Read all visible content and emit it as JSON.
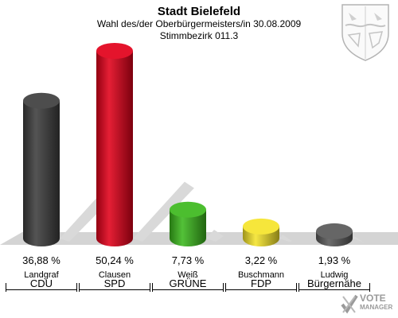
{
  "header": {
    "title": "Stadt Bielefeld",
    "subtitle": "Wahl des/der Oberbürgermeisters/in 30.08.2009",
    "district": "Stimmbezirk 011.3"
  },
  "logo": {
    "line1": "VOTE",
    "line2": "MANAGER"
  },
  "chart_data": {
    "type": "bar",
    "title": "Stadt Bielefeld",
    "ylim": [
      0,
      55
    ],
    "categories": [
      "Landgraf",
      "Clausen",
      "Weiß",
      "Buschmann",
      "Ludwig"
    ],
    "parties": [
      "CDU",
      "SPD",
      "GRÜNE",
      "FDP",
      "Bürgernähe"
    ],
    "values": [
      36.88,
      50.24,
      7.73,
      3.22,
      1.93
    ],
    "value_labels": [
      "36,88 %",
      "50,24 %",
      "7,73 %",
      "3,22 %",
      "1,93 %"
    ],
    "colors": [
      "#3d3d3d",
      "#e2001a",
      "#3cb81d",
      "#f5e42a",
      "#595959"
    ],
    "grid": false,
    "legend": "none"
  }
}
